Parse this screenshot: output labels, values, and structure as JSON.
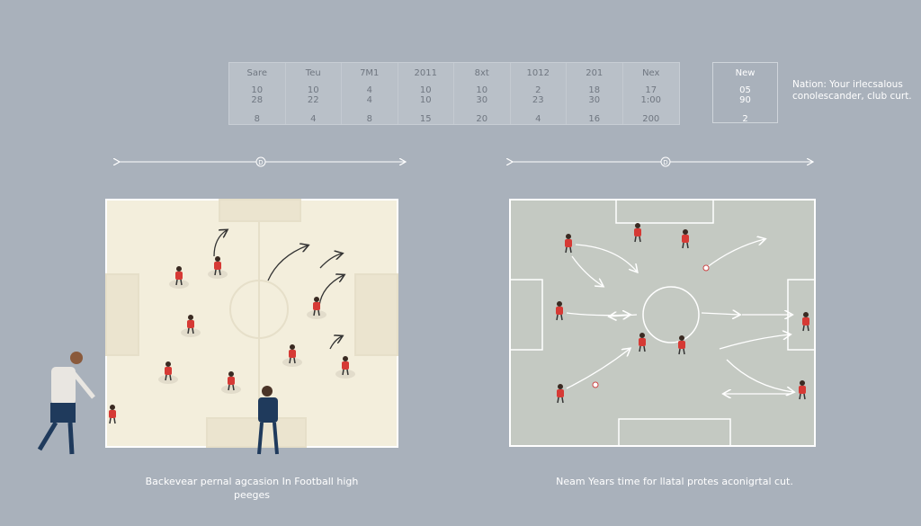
{
  "stats_table": {
    "columns": [
      {
        "header": "Sare",
        "row1": "10",
        "row2": "28",
        "row3": "8"
      },
      {
        "header": "Teu",
        "row1": "10",
        "row2": "22",
        "row3": "4"
      },
      {
        "header": "7M1",
        "row1": "4",
        "row2": "4",
        "row3": "8"
      },
      {
        "header": "2011",
        "row1": "10",
        "row2": "10",
        "row3": "15"
      },
      {
        "header": "8xt",
        "row1": "10",
        "row2": "30",
        "row3": "20"
      },
      {
        "header": "1012",
        "row1": "2",
        "row2": "23",
        "row3": "4"
      },
      {
        "header": "201",
        "row1": "18",
        "row2": "30",
        "row3": "16"
      },
      {
        "header": "Nex",
        "row1": "17",
        "row2": "1:00",
        "row3": "200"
      }
    ]
  },
  "side_table": {
    "header": "New",
    "row1": "05",
    "row2": "90",
    "row3": "2"
  },
  "note": "Nation: Your irlecsalous conolescander, club curt.",
  "dimension_label": "D",
  "captions": {
    "left": "Backevear pernal agcasion In Football high peeges",
    "right": "Neam Years time for llatal protes aconigrtal cut."
  },
  "colors": {
    "background": "#a9b1bb",
    "left_pitch": "#f3eedc",
    "right_pitch": "#c4c9c2",
    "player": "#d63a35"
  }
}
